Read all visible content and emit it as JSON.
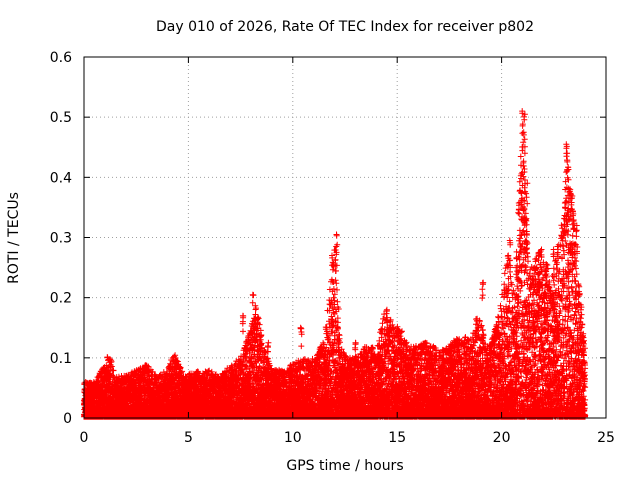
{
  "chart_data": {
    "type": "scatter",
    "title": "Day 010 of 2026, Rate Of TEC Index for receiver p802",
    "xlabel": "GPS time / hours",
    "ylabel": "ROTI / TECUs",
    "xlim": [
      0,
      25
    ],
    "ylim": [
      0,
      0.6
    ],
    "xticks": [
      "0",
      "5",
      "10",
      "15",
      "20",
      "25"
    ],
    "yticks": [
      "0",
      "0.1",
      "0.2",
      "0.3",
      "0.4",
      "0.5",
      "0.6"
    ],
    "grid": true,
    "legend": "none",
    "marker": "plus",
    "color": "#ff0000",
    "envelope": [
      [
        0.0,
        0.06
      ],
      [
        0.5,
        0.06
      ],
      [
        1.0,
        0.09
      ],
      [
        1.2,
        0.11
      ],
      [
        1.5,
        0.07
      ],
      [
        2.0,
        0.07
      ],
      [
        2.5,
        0.08
      ],
      [
        3.0,
        0.09
      ],
      [
        3.5,
        0.07
      ],
      [
        4.0,
        0.08
      ],
      [
        4.3,
        0.11
      ],
      [
        4.8,
        0.07
      ],
      [
        5.5,
        0.08
      ],
      [
        6.0,
        0.08
      ],
      [
        6.5,
        0.07
      ],
      [
        7.0,
        0.09
      ],
      [
        7.5,
        0.1
      ],
      [
        8.0,
        0.15
      ],
      [
        8.2,
        0.2
      ],
      [
        8.6,
        0.12
      ],
      [
        9.0,
        0.08
      ],
      [
        9.5,
        0.08
      ],
      [
        10.0,
        0.09
      ],
      [
        10.5,
        0.1
      ],
      [
        11.0,
        0.1
      ],
      [
        11.5,
        0.13
      ],
      [
        12.0,
        0.29
      ],
      [
        12.3,
        0.12
      ],
      [
        12.6,
        0.1
      ],
      [
        13.0,
        0.1
      ],
      [
        13.5,
        0.12
      ],
      [
        14.0,
        0.12
      ],
      [
        14.4,
        0.18
      ],
      [
        14.8,
        0.16
      ],
      [
        15.2,
        0.15
      ],
      [
        15.6,
        0.12
      ],
      [
        16.0,
        0.12
      ],
      [
        16.5,
        0.13
      ],
      [
        17.0,
        0.11
      ],
      [
        17.5,
        0.12
      ],
      [
        18.0,
        0.14
      ],
      [
        18.5,
        0.13
      ],
      [
        19.0,
        0.17
      ],
      [
        19.3,
        0.12
      ],
      [
        19.7,
        0.15
      ],
      [
        20.0,
        0.2
      ],
      [
        20.3,
        0.29
      ],
      [
        20.6,
        0.2
      ],
      [
        21.0,
        0.5
      ],
      [
        21.3,
        0.24
      ],
      [
        21.7,
        0.28
      ],
      [
        22.0,
        0.27
      ],
      [
        22.4,
        0.25
      ],
      [
        22.8,
        0.3
      ],
      [
        23.2,
        0.45
      ],
      [
        23.5,
        0.33
      ],
      [
        23.8,
        0.2
      ],
      [
        24.0,
        0.12
      ]
    ],
    "outliers": [
      [
        7.6,
        0.17
      ],
      [
        8.1,
        0.205
      ],
      [
        8.3,
        0.165
      ],
      [
        8.8,
        0.125
      ],
      [
        10.4,
        0.15
      ],
      [
        11.9,
        0.27
      ],
      [
        12.1,
        0.305
      ],
      [
        12.05,
        0.285
      ],
      [
        13.0,
        0.125
      ],
      [
        14.5,
        0.18
      ],
      [
        19.1,
        0.225
      ],
      [
        18.8,
        0.165
      ],
      [
        20.4,
        0.295
      ],
      [
        21.0,
        0.51
      ],
      [
        21.1,
        0.505
      ],
      [
        21.05,
        0.475
      ],
      [
        21.1,
        0.44
      ],
      [
        20.95,
        0.42
      ],
      [
        21.2,
        0.39
      ],
      [
        21.0,
        0.365
      ],
      [
        21.1,
        0.33
      ],
      [
        21.2,
        0.31
      ],
      [
        22.5,
        0.28
      ],
      [
        22.7,
        0.285
      ],
      [
        23.1,
        0.455
      ],
      [
        23.15,
        0.44
      ],
      [
        23.2,
        0.37
      ],
      [
        23.1,
        0.335
      ],
      [
        23.3,
        0.38
      ],
      [
        23.6,
        0.32
      ],
      [
        23.4,
        0.29
      ],
      [
        21.6,
        0.25
      ],
      [
        21.9,
        0.28
      ],
      [
        22.1,
        0.245
      ],
      [
        20.3,
        0.27
      ],
      [
        21.5,
        0.16
      ],
      [
        21.8,
        0.23
      ],
      [
        22.2,
        0.19
      ],
      [
        23.7,
        0.21
      ],
      [
        23.9,
        0.14
      ]
    ]
  }
}
